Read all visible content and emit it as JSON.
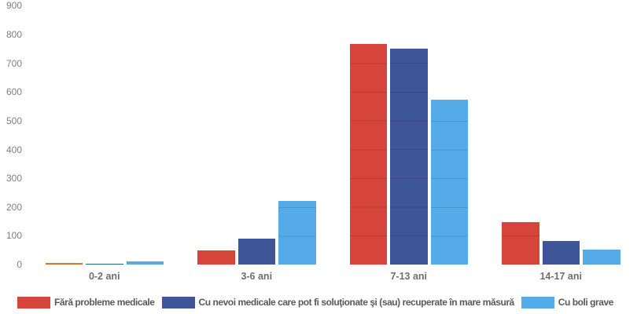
{
  "chart_data": {
    "type": "bar",
    "title": "",
    "categories": [
      "0-2 ani",
      "3-6 ani",
      "7-13 ani",
      "14-17 ani"
    ],
    "series": [
      {
        "name": "Fără probleme medicale",
        "color": "#d5453a",
        "values": [
          5,
          49,
          767,
          147
        ],
        "point_colors": [
          "#e87522",
          null,
          null,
          null
        ]
      },
      {
        "name": "Cu nevoi medicale care pot fi soluţionate şi (sau) recuperate în mare măsură",
        "color": "#3e5697",
        "values": [
          4,
          90,
          750,
          83
        ],
        "point_colors": [
          "#176b80",
          null,
          null,
          null
        ]
      },
      {
        "name": "Cu boli grave",
        "color": "#55abe8",
        "values": [
          12,
          222,
          574,
          51
        ],
        "point_colors": [
          null,
          null,
          null,
          null
        ]
      }
    ],
    "xlabel": "",
    "ylabel": "",
    "ylim": [
      0,
      900
    ],
    "yticks": [
      0,
      100,
      200,
      300,
      400,
      500,
      600,
      700,
      800,
      900
    ],
    "grid": true,
    "legend_position": "bottom",
    "text_color": "#7f7f7f"
  }
}
